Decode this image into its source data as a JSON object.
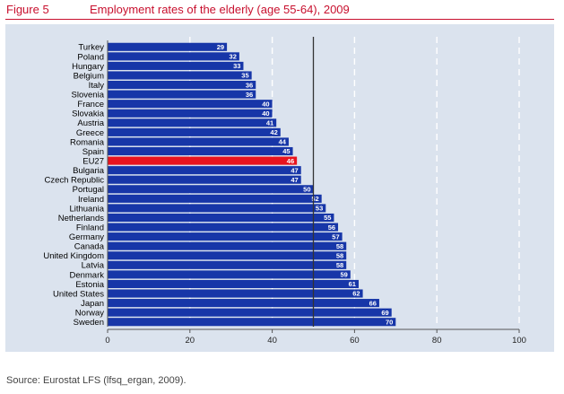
{
  "figure": {
    "label": "Figure 5",
    "title": "Employment rates of the elderly (age 55-64), 2009",
    "source": "Source: Eurostat LFS (lfsq_ergan, 2009)."
  },
  "colors": {
    "bar": "#1736a8",
    "highlight": "#e8141e",
    "panel": "#dbe3ee",
    "title": "#c8102e"
  },
  "chart_data": {
    "type": "bar",
    "orientation": "horizontal",
    "categories": [
      "Turkey",
      "Poland",
      "Hungary",
      "Belgium",
      "Italy",
      "Slovenia",
      "France",
      "Slovakia",
      "Austria",
      "Greece",
      "Romania",
      "Spain",
      "EU27",
      "Bulgaria",
      "Czech Republic",
      "Portugal",
      "Ireland",
      "Lithuania",
      "Netherlands",
      "Finland",
      "Germany",
      "Canada",
      "United Kingdom",
      "Latvia",
      "Denmark",
      "Estonia",
      "United States",
      "Japan",
      "Norway",
      "Sweden"
    ],
    "values": [
      29,
      32,
      33,
      35,
      36,
      36,
      40,
      40,
      41,
      42,
      44,
      45,
      46,
      47,
      47,
      50,
      52,
      53,
      55,
      56,
      57,
      58,
      58,
      58,
      59,
      61,
      62,
      66,
      69,
      70
    ],
    "highlight": "EU27",
    "xlim": [
      0,
      100
    ],
    "xticks": [
      0,
      20,
      40,
      60,
      80,
      100
    ],
    "reference_line": 50,
    "grid": "dashed vertical",
    "title": "",
    "xlabel": "",
    "ylabel": ""
  }
}
